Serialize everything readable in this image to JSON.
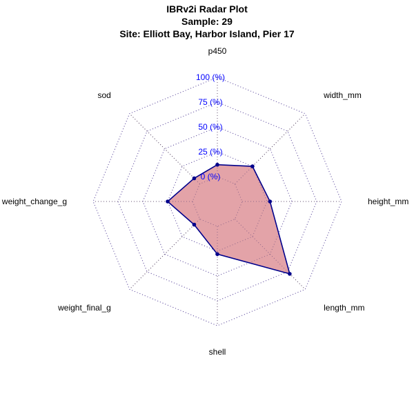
{
  "chart_data": {
    "type": "radar",
    "title": "IBRv2i Radar Plot",
    "subtitle": "Sample: 29",
    "site": "Site: Elliott Bay, Harbor Island, Pier 17",
    "axes": [
      "p450",
      "width_mm",
      "height_mm",
      "length_mm",
      "shell",
      "weight_final_g",
      "weight_change_g",
      "sod"
    ],
    "ticks": [
      "0 (%)",
      "25 (%)",
      "50 (%)",
      "75 (%)",
      "100 (%)"
    ],
    "rlim": [
      0,
      100
    ],
    "values": [
      12,
      25,
      28,
      78,
      28,
      8,
      25,
      8
    ],
    "colors": {
      "fill": "#e3a3a8",
      "line": "#00008b",
      "grid": "#5a5ad6",
      "tick_label": "#0000ff"
    }
  }
}
